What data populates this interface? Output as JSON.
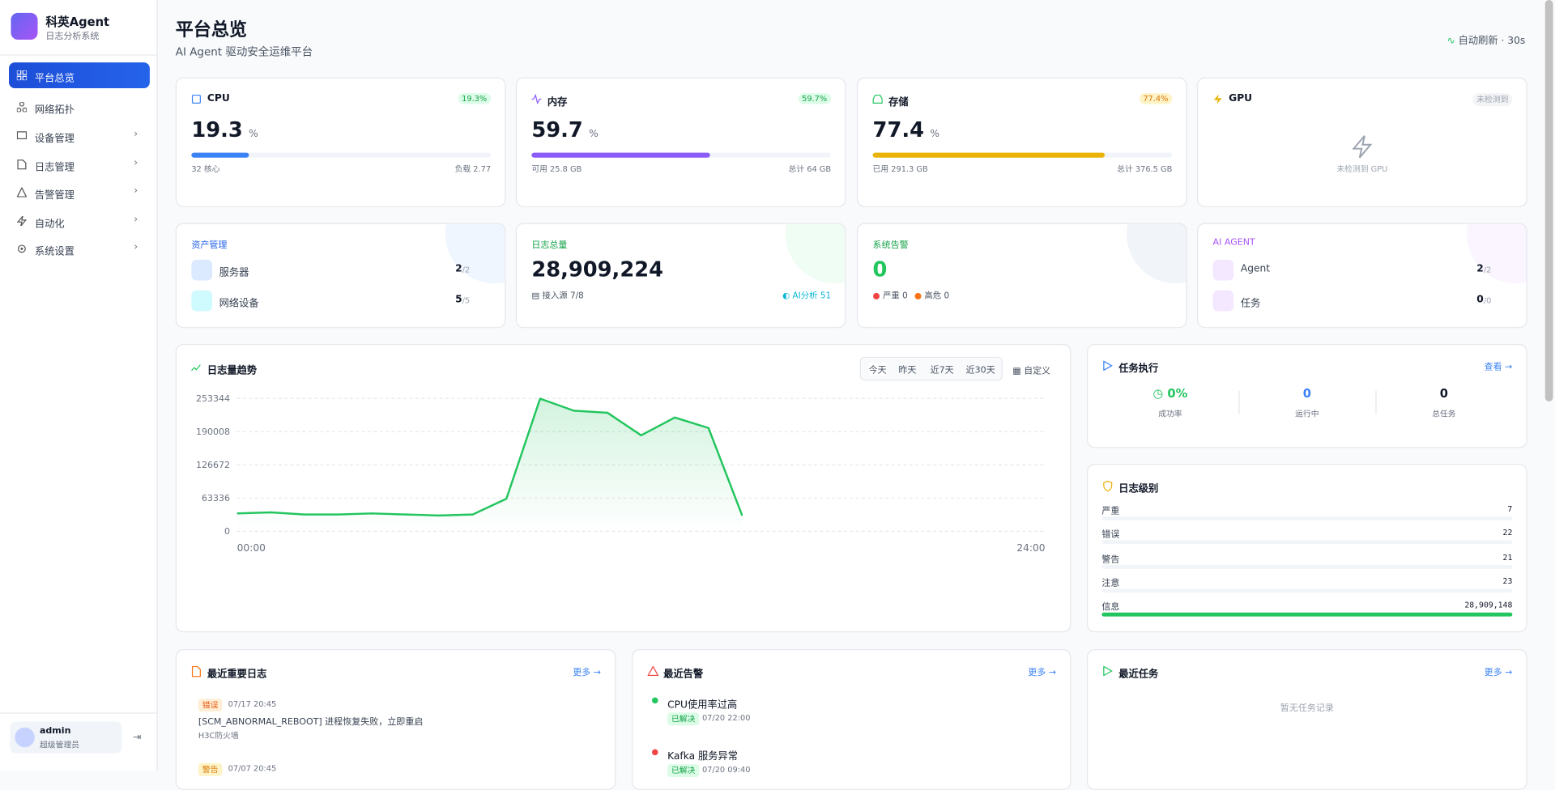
{
  "sidebar": {
    "brand": "科英Agent",
    "subtitle": "日志分析系统",
    "menu": [
      "平台总览",
      "网络拓扑",
      "设备管理",
      "日志管理",
      "告警管理",
      "自动化",
      "系统设置"
    ],
    "user": {
      "name": "admin",
      "role": "超级管理员"
    }
  },
  "header": {
    "title": "平台总览",
    "subtitle": "AI Agent 驱动安全运维平台",
    "refresh": "自动刷新 · 30s"
  },
  "resources": [
    {
      "name": "CPU",
      "badge": "19.3%",
      "value": 19.3,
      "unit": "%",
      "left": "32 核心",
      "right": "负载 2.77",
      "color": "#3b82f6"
    },
    {
      "name": "内存",
      "badge": "59.7%",
      "value": 59.7,
      "unit": "%",
      "left": "可用 25.8 GB",
      "right": "总计 64 GB",
      "color": "#8b5cf6"
    },
    {
      "name": "存储",
      "badge": "77.4%",
      "value": 77.4,
      "unit": "%",
      "left": "已用 291.3 GB",
      "right": "总计 376.5 GB",
      "color": "#eab308"
    }
  ],
  "gpu": {
    "name": "GPU",
    "badge": "未检测到",
    "note": "未检测到 GPU"
  },
  "assets": {
    "title": "资产管理",
    "items": [
      {
        "label": "服务器",
        "count": "2",
        "total": "/2"
      },
      {
        "label": "网络设备",
        "count": "5",
        "total": "/5"
      }
    ]
  },
  "logs_total": {
    "title": "日志总量",
    "value": "28,909,224",
    "sources": "接入源 7/8",
    "ai": "AI分析 51"
  },
  "alerts": {
    "title": "系统告警",
    "value": "0",
    "critical": "严重 0",
    "high": "高危 0"
  },
  "agent": {
    "title": "AI AGENT",
    "items": [
      {
        "label": "Agent",
        "count": "2",
        "total": "/2"
      },
      {
        "label": "任务",
        "count": "0",
        "total": "/0"
      }
    ]
  },
  "trend": {
    "title": "日志量趋势",
    "ranges": [
      "今天",
      "昨天",
      "近7天",
      "近30天"
    ],
    "custom": "自定义",
    "chart_data": {
      "type": "line",
      "x": [
        0,
        1,
        2,
        3,
        4,
        5,
        6,
        7,
        8,
        9,
        10,
        11,
        12,
        13,
        14,
        15
      ],
      "xlim": [
        0,
        24
      ],
      "xticks": [
        {
          "value": 0,
          "label": "00:00"
        },
        {
          "value": 24,
          "label": "24:00"
        }
      ],
      "series": [
        {
          "color": "#22c55e",
          "values": [
            34000,
            36000,
            32000,
            32000,
            34000,
            32000,
            30000,
            32000,
            62000,
            253000,
            230000,
            226000,
            183000,
            217000,
            197000,
            30000
          ]
        }
      ],
      "ylim": [
        0,
        253344
      ],
      "yticks": [
        0,
        63336,
        126672,
        190008,
        253344
      ],
      "grid": true
    }
  },
  "tasks": {
    "title": "任务执行",
    "link": "查看 →",
    "stats": [
      {
        "value": "0%",
        "label": "成功率"
      },
      {
        "value": "0",
        "label": "运行中"
      },
      {
        "value": "0",
        "label": "总任务"
      }
    ]
  },
  "levels": {
    "title": "日志级别",
    "names": [
      "严重",
      "错误",
      "警告",
      "注意",
      "信息"
    ],
    "values": [
      7,
      22,
      21,
      23,
      28909148
    ],
    "value_labels": [
      "7",
      "22",
      "21",
      "23",
      "28,909,148"
    ],
    "color": "#22c55e"
  },
  "recent_logs": {
    "title": "最近重要日志",
    "link": "更多 →",
    "items": [
      {
        "level": "错误",
        "time": "07/17 20:45",
        "message": "[SCM_ABNORMAL_REBOOT] 进程恢复失败，立即重启",
        "source": "H3C防火墙"
      },
      {
        "level": "警告",
        "time": "07/07 20:45"
      }
    ]
  },
  "recent_alerts": {
    "title": "最近告警",
    "link": "更多 →",
    "items": [
      {
        "name": "CPU使用率过高",
        "status": "已解决",
        "time": "07/20 22:00"
      },
      {
        "name": "Kafka 服务异常",
        "status": "已解决",
        "time": "07/20 09:40"
      }
    ]
  },
  "recent_tasks": {
    "title": "最近任务",
    "link": "更多 →",
    "empty": "暂无任务记录"
  }
}
